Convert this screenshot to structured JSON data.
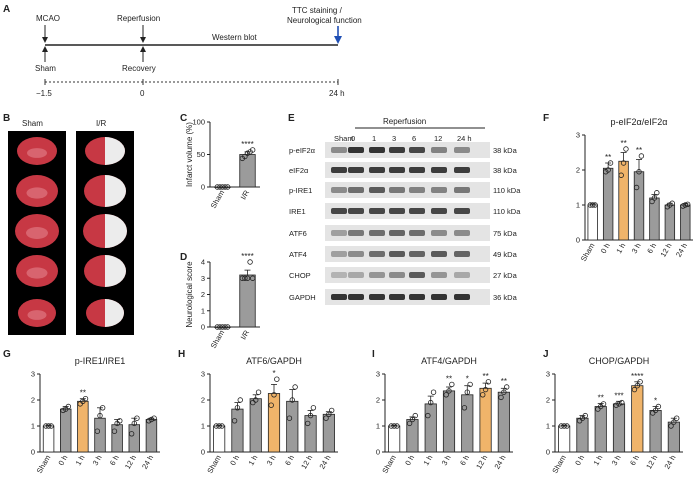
{
  "panel_a": {
    "letter": "A",
    "events_top": [
      "MCAO",
      "Reperfusion",
      "Western blot"
    ],
    "event_right": [
      "TTC staining /",
      "Neurological function"
    ],
    "events_bottom": [
      "Sham",
      "Recovery"
    ],
    "times": [
      "−1.5",
      "0",
      "24 h"
    ]
  },
  "panel_b": {
    "letter": "B",
    "col_labels": [
      "Sham",
      "I/R"
    ]
  },
  "panel_e": {
    "letter": "E",
    "header": "Reperfusion",
    "lanes": [
      "Sham",
      "0",
      "1",
      "3",
      "6",
      "12",
      "24 h"
    ],
    "proteins": [
      "p-eIF2α",
      "eIF2α",
      "p-IRE1",
      "IRE1",
      "ATF6",
      "ATF4",
      "CHOP",
      "GAPDH"
    ],
    "sizes": [
      "38 kDa",
      "38 kDa",
      "110 kDa",
      "110 kDa",
      "75 kDa",
      "49 kDa",
      "27 kDa",
      "36 kDa"
    ]
  },
  "colors": {
    "bar_default": "#9b9b9b",
    "bar_highlight": "#f0b46a",
    "bar_sham": "#ffffff",
    "arrow_blue": "#1f4fb5",
    "sham_brain": "#c73844",
    "ir_infarct": "#ececec"
  },
  "chart_data": [
    {
      "id": "C",
      "letter": "C",
      "type": "bar",
      "title": "",
      "ylabel": "Infarct volume (%)",
      "xlabel": "",
      "categories": [
        "Sham",
        "I/R"
      ],
      "values": [
        0,
        50
      ],
      "errors": [
        0,
        4
      ],
      "points": [
        [
          0,
          0,
          0,
          0,
          0
        ],
        [
          44,
          47,
          52,
          54,
          57
        ]
      ],
      "ylim": [
        0,
        100
      ],
      "yticks": [
        0,
        50,
        100
      ],
      "significance": [
        "",
        "****"
      ],
      "highlight": []
    },
    {
      "id": "D",
      "letter": "D",
      "type": "bar",
      "title": "",
      "ylabel": "Neurological score",
      "xlabel": "",
      "categories": [
        "Sham",
        "I/R"
      ],
      "values": [
        0,
        3.2
      ],
      "errors": [
        0,
        0.3
      ],
      "points": [
        [
          0,
          0,
          0,
          0,
          0
        ],
        [
          3,
          3,
          3,
          4,
          3
        ]
      ],
      "ylim": [
        0,
        4
      ],
      "yticks": [
        0,
        1,
        2,
        3,
        4
      ],
      "significance": [
        "",
        "****"
      ],
      "highlight": []
    },
    {
      "id": "F",
      "letter": "F",
      "type": "bar",
      "title": "p-eIF2α/eIF2α",
      "ylabel": "",
      "xlabel": "",
      "categories": [
        "Sham",
        "0 h",
        "1 h",
        "3 h",
        "6 h",
        "12 h",
        "24 h"
      ],
      "values": [
        1.0,
        2.05,
        2.25,
        1.95,
        1.2,
        1.0,
        1.0
      ],
      "errors": [
        0.03,
        0.15,
        0.25,
        0.35,
        0.1,
        0.05,
        0.04
      ],
      "points": [
        [
          1,
          1,
          1
        ],
        [
          1.95,
          2.0,
          2.2
        ],
        [
          1.85,
          2.2,
          2.6
        ],
        [
          1.5,
          1.95,
          2.4
        ],
        [
          1.1,
          1.2,
          1.35
        ],
        [
          0.95,
          1.0,
          1.05
        ],
        [
          0.97,
          1.0,
          1.02
        ]
      ],
      "ylim": [
        0,
        3
      ],
      "yticks": [
        0,
        1,
        2,
        3
      ],
      "significance": [
        "",
        "**",
        "**",
        "**",
        "",
        "",
        ""
      ],
      "highlight": [
        2
      ]
    },
    {
      "id": "G",
      "letter": "G",
      "type": "bar",
      "title": "p-IRE1/IRE1",
      "ylabel": "",
      "xlabel": "",
      "categories": [
        "Sham",
        "0 h",
        "1 h",
        "3 h",
        "6 h",
        "12 h",
        "24 h"
      ],
      "values": [
        1.0,
        1.65,
        1.95,
        1.3,
        1.05,
        1.05,
        1.25
      ],
      "errors": [
        0.03,
        0.1,
        0.1,
        0.4,
        0.2,
        0.25,
        0.05
      ],
      "points": [
        [
          1,
          1,
          1
        ],
        [
          1.6,
          1.65,
          1.75
        ],
        [
          1.85,
          1.95,
          2.05
        ],
        [
          0.8,
          1.4,
          1.7
        ],
        [
          0.8,
          1.1,
          1.2
        ],
        [
          0.7,
          1.1,
          1.3
        ],
        [
          1.2,
          1.25,
          1.3
        ]
      ],
      "ylim": [
        0,
        3
      ],
      "yticks": [
        0,
        1,
        2,
        3
      ],
      "significance": [
        "",
        "",
        "**",
        "",
        "",
        "",
        ""
      ],
      "highlight": [
        2
      ]
    },
    {
      "id": "H",
      "letter": "H",
      "type": "bar",
      "title": "ATF6/GAPDH",
      "ylabel": "",
      "xlabel": "",
      "categories": [
        "Sham",
        "0 h",
        "1 h",
        "3 h",
        "6 h",
        "12 h",
        "24 h"
      ],
      "values": [
        1.0,
        1.65,
        2.05,
        2.25,
        1.95,
        1.4,
        1.45
      ],
      "errors": [
        0.03,
        0.25,
        0.15,
        0.35,
        0.45,
        0.2,
        0.1
      ],
      "points": [
        [
          1,
          1,
          1
        ],
        [
          1.2,
          1.7,
          2.0
        ],
        [
          1.9,
          2.0,
          2.3
        ],
        [
          1.8,
          2.2,
          2.8
        ],
        [
          1.3,
          2.0,
          2.5
        ],
        [
          1.1,
          1.4,
          1.7
        ],
        [
          1.3,
          1.45,
          1.6
        ]
      ],
      "ylim": [
        0,
        3
      ],
      "yticks": [
        0,
        1,
        2,
        3
      ],
      "significance": [
        "",
        "",
        "",
        "*",
        "",
        "",
        ""
      ],
      "highlight": [
        3
      ]
    },
    {
      "id": "I",
      "letter": "I",
      "type": "bar",
      "title": "ATF4/GAPDH",
      "ylabel": "",
      "xlabel": "",
      "categories": [
        "Sham",
        "0 h",
        "1 h",
        "3 h",
        "6 h",
        "12 h",
        "24 h"
      ],
      "values": [
        1.0,
        1.25,
        1.85,
        2.35,
        2.2,
        2.45,
        2.3
      ],
      "errors": [
        0.03,
        0.1,
        0.3,
        0.15,
        0.35,
        0.2,
        0.15
      ],
      "points": [
        [
          1,
          1,
          1
        ],
        [
          1.1,
          1.25,
          1.4
        ],
        [
          1.4,
          1.9,
          2.3
        ],
        [
          2.2,
          2.35,
          2.6
        ],
        [
          1.7,
          2.3,
          2.6
        ],
        [
          2.2,
          2.4,
          2.7
        ],
        [
          2.1,
          2.3,
          2.5
        ]
      ],
      "ylim": [
        0,
        3
      ],
      "yticks": [
        0,
        1,
        2,
        3
      ],
      "significance": [
        "",
        "",
        "",
        "**",
        "*",
        "**",
        "**"
      ],
      "highlight": [
        5
      ]
    },
    {
      "id": "J",
      "letter": "J",
      "type": "bar",
      "title": "CHOP/GAPDH",
      "ylabel": "",
      "xlabel": "",
      "categories": [
        "Sham",
        "0 h",
        "1 h",
        "3 h",
        "6 h",
        "12 h",
        "24 h"
      ],
      "values": [
        1.0,
        1.3,
        1.75,
        1.85,
        2.55,
        1.6,
        1.15
      ],
      "errors": [
        0.03,
        0.1,
        0.12,
        0.1,
        0.15,
        0.15,
        0.15
      ],
      "points": [
        [
          1,
          1,
          1
        ],
        [
          1.2,
          1.3,
          1.4
        ],
        [
          1.65,
          1.75,
          1.85
        ],
        [
          1.8,
          1.85,
          1.9
        ],
        [
          2.4,
          2.55,
          2.7
        ],
        [
          1.5,
          1.6,
          1.75
        ],
        [
          1.0,
          1.15,
          1.3
        ]
      ],
      "ylim": [
        0,
        3
      ],
      "yticks": [
        0,
        1,
        2,
        3
      ],
      "significance": [
        "",
        "",
        "**",
        "***",
        "****",
        "*",
        ""
      ],
      "highlight": [
        4
      ]
    }
  ]
}
